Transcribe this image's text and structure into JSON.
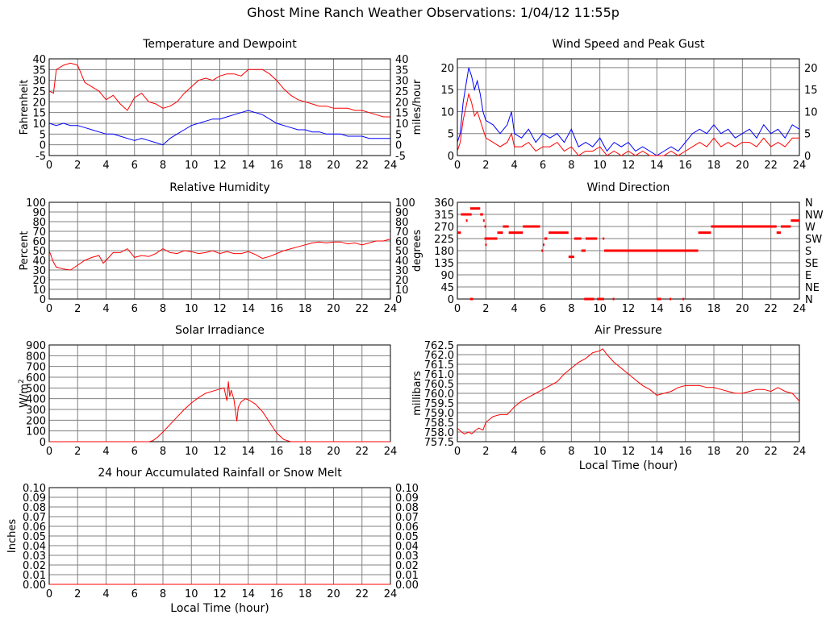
{
  "title": "Ghost Mine Ranch Weather Observations: 1/04/12 11:55p",
  "xticks": [
    0,
    2,
    4,
    6,
    8,
    10,
    12,
    14,
    16,
    18,
    20,
    22,
    24
  ],
  "chart_data": [
    {
      "id": "temperature",
      "type": "line",
      "title": "Temperature and Dewpoint",
      "ylabel": "Fahrenheit",
      "xlabel": "",
      "xlim": [
        0,
        24
      ],
      "ylim": [
        -5,
        40
      ],
      "yticks": [
        -5,
        0,
        5,
        10,
        15,
        20,
        25,
        30,
        35,
        40
      ],
      "grid": true,
      "series": [
        {
          "color": "#ff0000",
          "x": [
            0,
            0.3,
            0.5,
            1,
            1.5,
            2,
            2.5,
            3,
            3.5,
            4,
            4.5,
            5,
            5.5,
            6,
            6.5,
            7,
            7.5,
            8,
            8.5,
            9,
            9.5,
            10,
            10.5,
            11,
            11.5,
            12,
            12.5,
            13,
            13.5,
            14,
            14.5,
            15,
            15.5,
            16,
            16.5,
            17,
            17.5,
            18,
            18.5,
            19,
            19.5,
            20,
            20.5,
            21,
            21.5,
            22,
            22.5,
            23,
            23.5,
            24
          ],
          "y": [
            25,
            24,
            35,
            37,
            38,
            37,
            29,
            27,
            25,
            21,
            23,
            19,
            16,
            22,
            24,
            20,
            19,
            17,
            18,
            20,
            24,
            27,
            30,
            31,
            30,
            32,
            33,
            33,
            32,
            35,
            35,
            35,
            33,
            30,
            26,
            23,
            21,
            20,
            19,
            18,
            18,
            17,
            17,
            17,
            16,
            16,
            15,
            14,
            13,
            13
          ]
        },
        {
          "color": "#0000ff",
          "x": [
            0,
            0.5,
            1,
            1.5,
            2,
            2.5,
            3,
            3.5,
            4,
            4.5,
            5,
            5.5,
            6,
            6.5,
            7,
            7.5,
            8,
            8.5,
            9,
            9.5,
            10,
            10.5,
            11,
            11.5,
            12,
            12.5,
            13,
            13.5,
            14,
            14.5,
            15,
            15.5,
            16,
            16.5,
            17,
            17.5,
            18,
            18.5,
            19,
            19.5,
            20,
            20.5,
            21,
            21.5,
            22,
            22.5,
            23,
            23.5,
            24
          ],
          "y": [
            10,
            9,
            10,
            9,
            9,
            8,
            7,
            6,
            5,
            5,
            4,
            3,
            2,
            3,
            2,
            1,
            0,
            3,
            5,
            7,
            9,
            10,
            11,
            12,
            12,
            13,
            14,
            15,
            16,
            15,
            14,
            12,
            10,
            9,
            8,
            7,
            7,
            6,
            6,
            5,
            5,
            5,
            4,
            4,
            4,
            3,
            3,
            3,
            3
          ]
        }
      ]
    },
    {
      "id": "wind-speed",
      "type": "line",
      "title": "Wind Speed and Peak Gust",
      "ylabel": "miles/hour",
      "xlabel": "",
      "xlim": [
        0,
        24
      ],
      "ylim": [
        0,
        22
      ],
      "yticks": [
        0,
        5,
        10,
        15,
        20
      ],
      "grid": true,
      "series": [
        {
          "color": "#0000ff",
          "x": [
            0,
            0.2,
            0.4,
            0.6,
            0.8,
            1,
            1.2,
            1.4,
            1.6,
            1.8,
            2,
            2.5,
            3,
            3.5,
            3.8,
            4,
            4.5,
            5,
            5.5,
            6,
            6.5,
            7,
            7.5,
            8,
            8.5,
            9,
            9.5,
            10,
            10.5,
            11,
            11.5,
            12,
            12.5,
            13,
            13.5,
            14,
            14.5,
            15,
            15.5,
            16,
            16.5,
            17,
            17.5,
            18,
            18.5,
            19,
            19.5,
            20,
            20.5,
            21,
            21.5,
            22,
            22.5,
            23,
            23.5,
            24
          ],
          "y": [
            3,
            5,
            12,
            16,
            20,
            18,
            15,
            17,
            14,
            10,
            8,
            7,
            5,
            7,
            10,
            5,
            4,
            6,
            3,
            5,
            4,
            5,
            3,
            6,
            2,
            3,
            2,
            4,
            1,
            3,
            2,
            3,
            1,
            2,
            1,
            0,
            1,
            2,
            1,
            3,
            5,
            6,
            5,
            7,
            5,
            6,
            4,
            5,
            6,
            4,
            7,
            5,
            6,
            4,
            7,
            6
          ]
        },
        {
          "color": "#ff0000",
          "x": [
            0,
            0.2,
            0.4,
            0.6,
            0.8,
            1,
            1.2,
            1.4,
            1.6,
            1.8,
            2,
            2.5,
            3,
            3.5,
            3.8,
            4,
            4.5,
            5,
            5.5,
            6,
            6.5,
            7,
            7.5,
            8,
            8.5,
            9,
            9.5,
            10,
            10.5,
            11,
            11.5,
            12,
            12.5,
            13,
            13.5,
            14,
            14.5,
            15,
            15.5,
            16,
            16.5,
            17,
            17.5,
            18,
            18.5,
            19,
            19.5,
            20,
            20.5,
            21,
            21.5,
            22,
            22.5,
            23,
            23.5,
            24
          ],
          "y": [
            1,
            3,
            8,
            11,
            14,
            12,
            9,
            10,
            8,
            6,
            4,
            3,
            2,
            3,
            5,
            2,
            2,
            3,
            1,
            2,
            2,
            3,
            1,
            2,
            0,
            1,
            1,
            2,
            0,
            1,
            0,
            1,
            0,
            1,
            0,
            0,
            0,
            1,
            0,
            1,
            2,
            3,
            2,
            4,
            2,
            3,
            2,
            3,
            3,
            2,
            4,
            2,
            3,
            2,
            4,
            4
          ]
        }
      ]
    },
    {
      "id": "humidity",
      "type": "line",
      "title": "Relative Humidity",
      "ylabel": "Percent",
      "xlabel": "",
      "xlim": [
        0,
        24
      ],
      "ylim": [
        0,
        100
      ],
      "yticks": [
        0,
        10,
        20,
        30,
        40,
        50,
        60,
        70,
        80,
        90,
        100
      ],
      "grid": true,
      "series": [
        {
          "color": "#ff0000",
          "x": [
            0,
            0.3,
            0.5,
            1,
            1.5,
            2,
            2.5,
            3,
            3.5,
            3.8,
            4,
            4.5,
            5,
            5.5,
            6,
            6.5,
            7,
            7.5,
            8,
            8.5,
            9,
            9.5,
            10,
            10.5,
            11,
            11.5,
            12,
            12.5,
            13,
            13.5,
            14,
            14.5,
            15,
            15.5,
            16,
            16.5,
            17,
            17.5,
            18,
            18.5,
            19,
            19.5,
            20,
            20.5,
            21,
            21.5,
            22,
            22.5,
            23,
            23.5,
            24
          ],
          "y": [
            50,
            38,
            33,
            31,
            30,
            35,
            40,
            43,
            45,
            37,
            40,
            48,
            48,
            52,
            43,
            45,
            44,
            47,
            52,
            48,
            47,
            50,
            49,
            47,
            48,
            50,
            47,
            49,
            47,
            47,
            49,
            46,
            42,
            44,
            47,
            50,
            52,
            54,
            56,
            58,
            59,
            58,
            59,
            59,
            57,
            58,
            56,
            58,
            60,
            60,
            62
          ]
        }
      ]
    },
    {
      "id": "wind-direction",
      "type": "scatter",
      "title": "Wind Direction",
      "ylabel": "degrees",
      "xlabel": "",
      "xlim": [
        0,
        24
      ],
      "ylim": [
        0,
        360
      ],
      "yticks": [
        0,
        45,
        90,
        135,
        180,
        225,
        270,
        315,
        360
      ],
      "right_labels": [
        "N",
        "NE",
        "E",
        "SE",
        "S",
        "SW",
        "W",
        "NW",
        "N"
      ],
      "grid": true,
      "segments": [
        [
          0,
          0.25,
          247
        ],
        [
          0.25,
          1.0,
          315
        ],
        [
          0.6,
          0.7,
          292
        ],
        [
          0.9,
          1.6,
          337
        ],
        [
          1.6,
          1.8,
          315
        ],
        [
          1.8,
          1.9,
          292
        ],
        [
          1.9,
          2.0,
          270
        ],
        [
          1.9,
          2.8,
          225
        ],
        [
          1.95,
          2.05,
          202
        ],
        [
          2.8,
          3.2,
          247
        ],
        [
          3.2,
          3.6,
          270
        ],
        [
          3.6,
          4.6,
          247
        ],
        [
          4.6,
          5.8,
          270
        ],
        [
          5.9,
          6.0,
          180
        ],
        [
          6.0,
          6.1,
          202
        ],
        [
          6.1,
          6.3,
          225
        ],
        [
          6.4,
          7.8,
          247
        ],
        [
          7.8,
          8.2,
          157
        ],
        [
          8.2,
          8.7,
          225
        ],
        [
          8.7,
          9.0,
          180
        ],
        [
          9.0,
          9.8,
          225
        ],
        [
          10.2,
          10.3,
          225
        ],
        [
          10.3,
          16.9,
          180
        ],
        [
          0.9,
          1.1,
          0
        ],
        [
          8.9,
          9.6,
          0
        ],
        [
          9.8,
          10.3,
          0
        ],
        [
          10.9,
          11.0,
          0
        ],
        [
          14.0,
          14.3,
          0
        ],
        [
          14.9,
          15.0,
          0
        ],
        [
          15.8,
          15.9,
          0
        ],
        [
          16.9,
          17.8,
          247
        ],
        [
          17.8,
          22.4,
          270
        ],
        [
          22.4,
          22.7,
          247
        ],
        [
          22.7,
          23.4,
          270
        ],
        [
          23.4,
          24,
          292
        ]
      ]
    },
    {
      "id": "solar",
      "type": "line",
      "title": "Solar Irradiance",
      "ylabel": "W/m",
      "ylabel_sup": "2",
      "xlabel": "",
      "xlim": [
        0,
        24
      ],
      "ylim": [
        0,
        900
      ],
      "yticks": [
        0,
        100,
        200,
        300,
        400,
        500,
        600,
        700,
        800,
        900
      ],
      "grid": true,
      "series": [
        {
          "color": "#ff0000",
          "x": [
            0,
            7,
            7.3,
            7.6,
            8,
            8.5,
            9,
            9.5,
            10,
            10.5,
            11,
            11.5,
            12,
            12.3,
            12.5,
            12.6,
            12.7,
            12.8,
            13,
            13.2,
            13.3,
            13.5,
            13.8,
            14,
            14.5,
            15,
            15.5,
            16,
            16.5,
            17,
            24
          ],
          "y": [
            0,
            0,
            10,
            40,
            90,
            160,
            230,
            300,
            360,
            410,
            450,
            470,
            490,
            500,
            380,
            560,
            420,
            480,
            390,
            190,
            320,
            370,
            400,
            390,
            350,
            280,
            180,
            80,
            20,
            0,
            0
          ]
        }
      ]
    },
    {
      "id": "pressure",
      "type": "line",
      "title": "Air Pressure",
      "ylabel": "millibars",
      "xlabel": "Local Time (hour)",
      "xlim": [
        0,
        24
      ],
      "ylim": [
        757.5,
        762.5
      ],
      "yticks": [
        757.5,
        758.0,
        758.5,
        759.0,
        759.5,
        760.0,
        760.5,
        761.0,
        761.5,
        762.0,
        762.5
      ],
      "grid": true,
      "series": [
        {
          "color": "#ff0000",
          "x": [
            0,
            0.3,
            0.5,
            0.8,
            1,
            1.3,
            1.5,
            1.8,
            2,
            2.5,
            3,
            3.5,
            4,
            4.5,
            5,
            5.5,
            6,
            6.5,
            7,
            7.5,
            8,
            8.5,
            9,
            9.5,
            10,
            10.2,
            10.5,
            11,
            11.5,
            12,
            12.5,
            13,
            13.5,
            14,
            14.5,
            15,
            15.5,
            16,
            16.5,
            17,
            17.5,
            18,
            18.5,
            19,
            19.5,
            20,
            20.5,
            21,
            21.5,
            22,
            22.5,
            23,
            23.5,
            24
          ],
          "y": [
            758.2,
            758.0,
            757.9,
            758.0,
            757.9,
            758.1,
            758.2,
            758.1,
            758.5,
            758.8,
            758.9,
            758.9,
            759.3,
            759.6,
            759.8,
            760.0,
            760.2,
            760.4,
            760.6,
            761.0,
            761.3,
            761.6,
            761.8,
            762.1,
            762.2,
            762.3,
            762.0,
            761.6,
            761.3,
            761.0,
            760.7,
            760.4,
            760.2,
            759.9,
            760.0,
            760.1,
            760.3,
            760.4,
            760.4,
            760.4,
            760.3,
            760.3,
            760.2,
            760.1,
            760.0,
            760.0,
            760.1,
            760.2,
            760.2,
            760.1,
            760.3,
            760.1,
            760.0,
            759.6
          ]
        }
      ]
    },
    {
      "id": "rainfall",
      "type": "line",
      "title": "24 hour Accumulated Rainfall or Snow Melt",
      "ylabel": "Inches",
      "xlabel": "Local Time (hour)",
      "xlim": [
        0,
        24
      ],
      "ylim": [
        0,
        0.1
      ],
      "yticks": [
        0.0,
        0.01,
        0.02,
        0.03,
        0.04,
        0.05,
        0.06,
        0.07,
        0.08,
        0.09,
        0.1
      ],
      "ytick_labels": [
        "0.00",
        "0.01",
        "0.02",
        "0.03",
        "0.04",
        "0.05",
        "0.06",
        "0.07",
        "0.08",
        "0.09",
        "0.10"
      ],
      "grid": true,
      "series": [
        {
          "color": "#ff0000",
          "x": [
            0,
            24
          ],
          "y": [
            0,
            0
          ]
        }
      ]
    }
  ]
}
